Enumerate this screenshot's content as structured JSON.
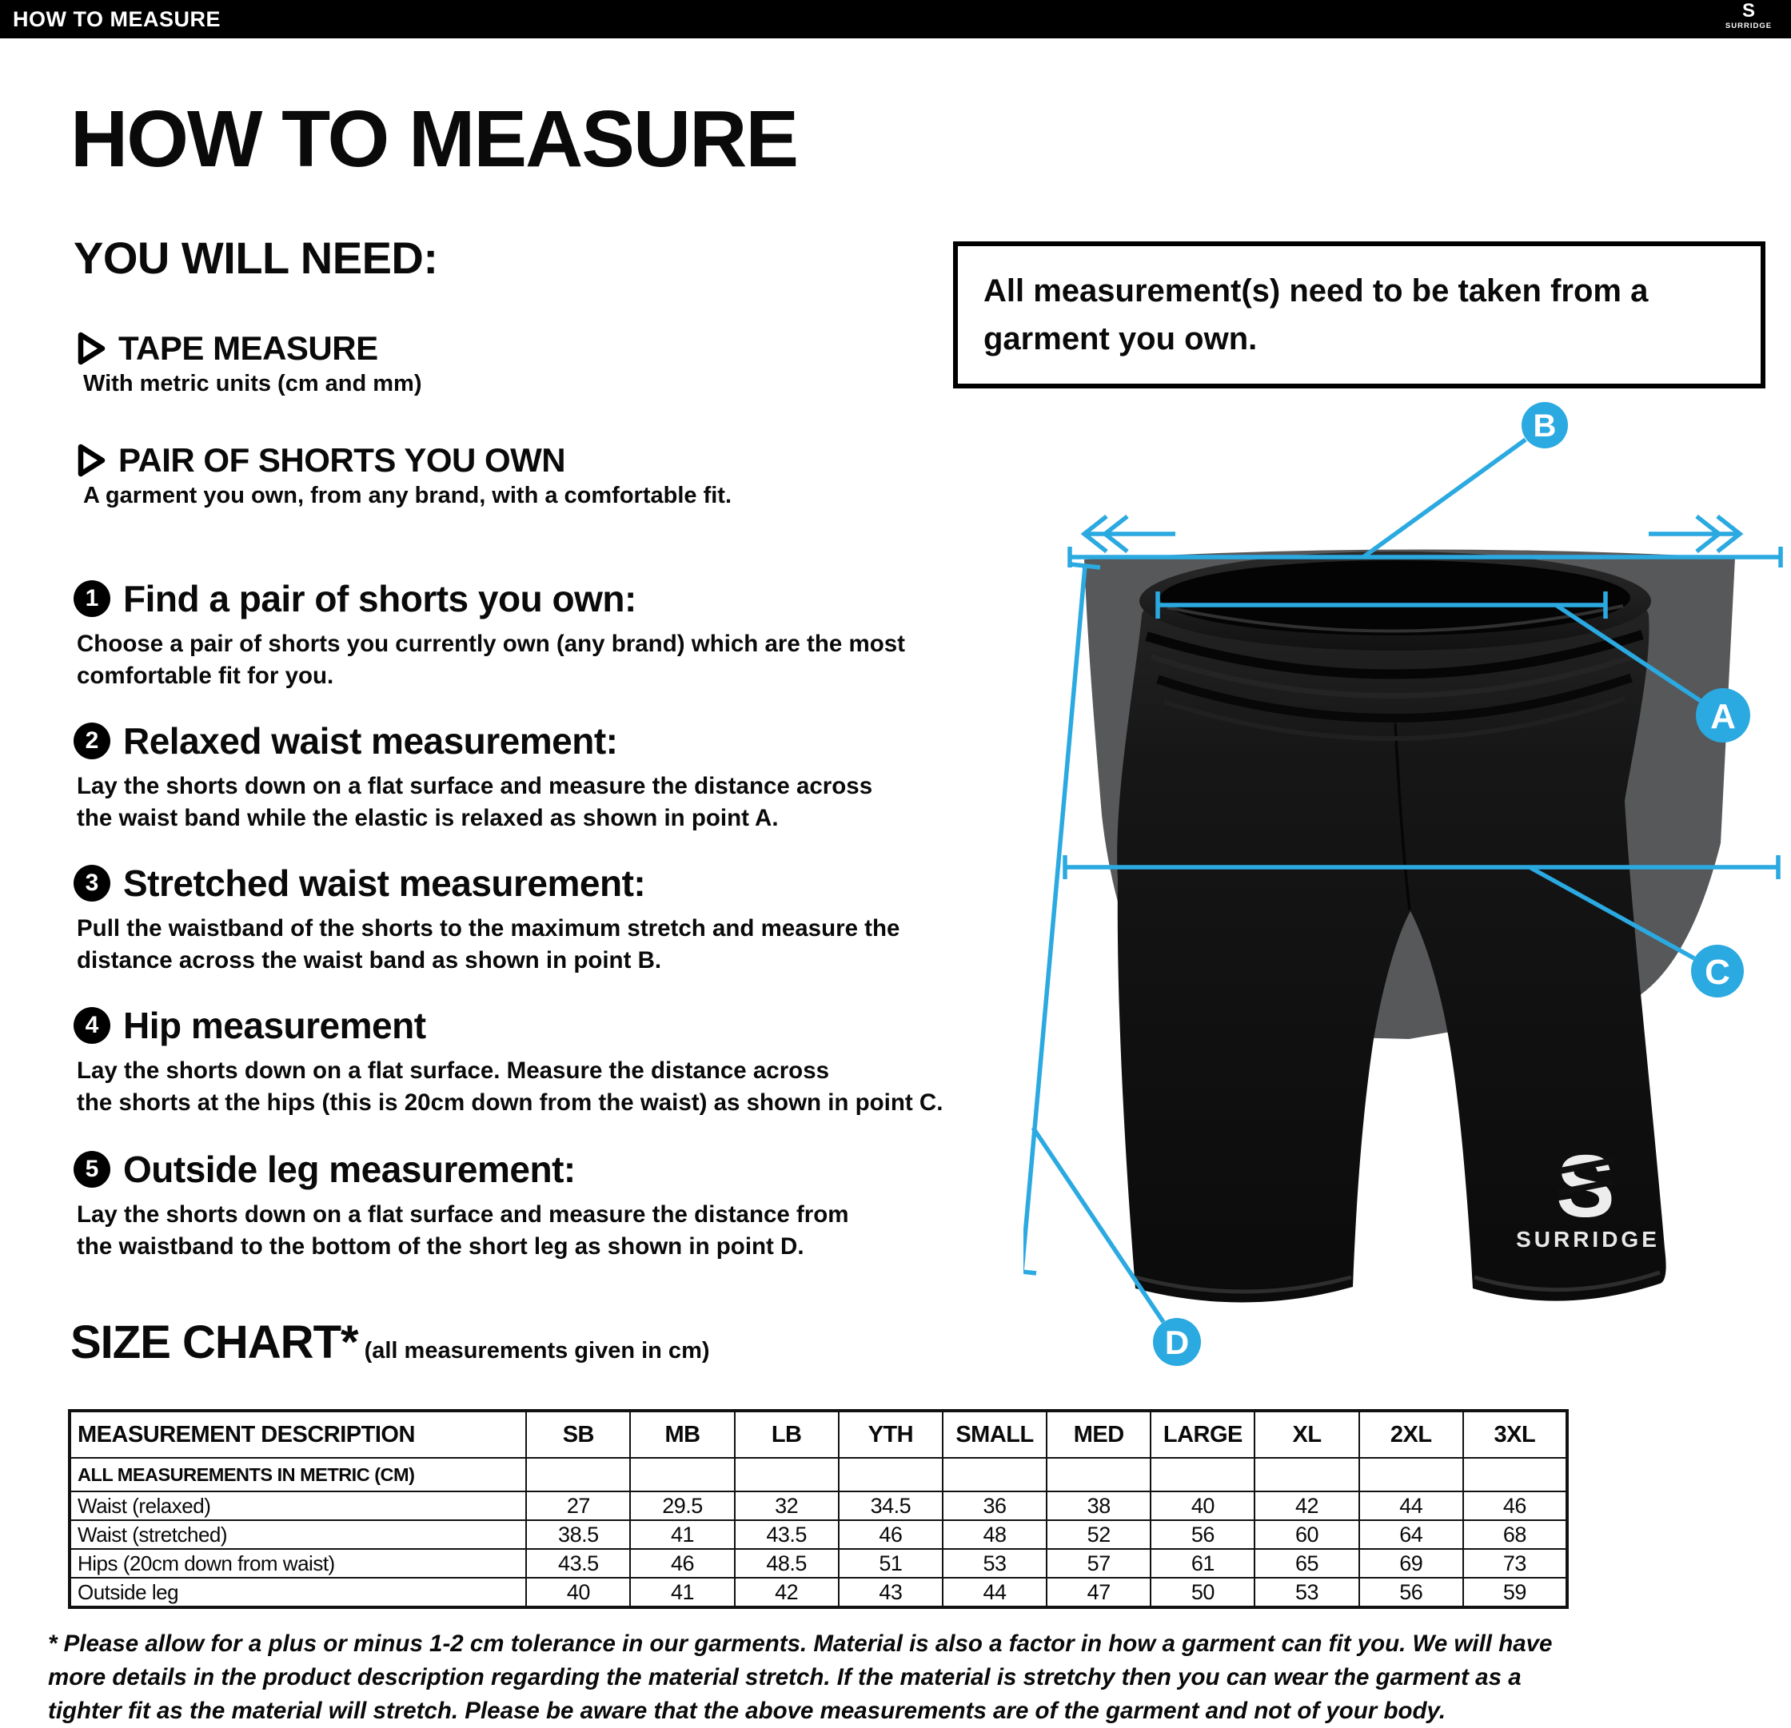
{
  "brand": {
    "name": "SURRIDGE",
    "logo_letter": "S"
  },
  "topbar": {
    "title": "HOW TO MEASURE"
  },
  "page_title": "HOW TO MEASURE",
  "you_will_need": {
    "title": "YOU WILL NEED:",
    "items": [
      {
        "label": "TAPE MEASURE",
        "desc": "With metric units (cm and mm)"
      },
      {
        "label": "PAIR OF SHORTS YOU OWN",
        "desc": "A garment you own, from any brand, with a comfortable fit."
      }
    ]
  },
  "note_box": "All measurement(s) need to be taken from a\ngarment you own.",
  "steps": [
    {
      "num": "1",
      "title": "Find a pair of shorts you own:",
      "desc": "Choose a pair of shorts you currently own (any brand) which are the most\ncomfortable fit for you."
    },
    {
      "num": "2",
      "title": "Relaxed waist measurement:",
      "desc": "Lay the shorts down on a flat surface and measure the distance across\nthe waist band while the elastic is relaxed as shown in point A."
    },
    {
      "num": "3",
      "title": "Stretched waist measurement:",
      "desc": "Pull the waistband of the shorts to the maximum stretch and measure the\ndistance across the waist band as shown in point B."
    },
    {
      "num": "4",
      "title": "Hip measurement",
      "desc": "Lay the shorts down on a flat surface. Measure the distance across\nthe shorts at the hips (this is 20cm down from the waist)  as shown in point C."
    },
    {
      "num": "5",
      "title": "Outside leg measurement:",
      "desc": "Lay the shorts down on a flat surface and measure the distance from\nthe waistband to the bottom of the short leg as shown in point D."
    }
  ],
  "diagram": {
    "accent_color": "#2BA9E1",
    "point_labels": {
      "a": "A",
      "b": "B",
      "c": "C",
      "d": "D"
    }
  },
  "size_chart": {
    "title": "SIZE CHART*",
    "subtitle": "(all measurements given in cm)",
    "columns": [
      "MEASUREMENT DESCRIPTION",
      "SB",
      "MB",
      "LB",
      "YTH",
      "SMALL",
      "MED",
      "LARGE",
      "XL",
      "2XL",
      "3XL"
    ],
    "note_row": "ALL MEASUREMENTS IN METRIC (CM)",
    "rows": [
      {
        "label": "Waist (relaxed)",
        "values": [
          "27",
          "29.5",
          "32",
          "34.5",
          "36",
          "38",
          "40",
          "42",
          "44",
          "46"
        ]
      },
      {
        "label": "Waist (stretched)",
        "values": [
          "38.5",
          "41",
          "43.5",
          "46",
          "48",
          "52",
          "56",
          "60",
          "64",
          "68"
        ]
      },
      {
        "label": "Hips (20cm down from waist)",
        "values": [
          "43.5",
          "46",
          "48.5",
          "51",
          "53",
          "57",
          "61",
          "65",
          "69",
          "73"
        ]
      },
      {
        "label": "Outside leg",
        "values": [
          "40",
          "41",
          "42",
          "43",
          "44",
          "47",
          "50",
          "53",
          "56",
          "59"
        ]
      }
    ]
  },
  "footnote": "* Please allow for a plus or minus 1-2 cm tolerance in our garments. Material is also a factor in how a garment can fit you. We will have\nmore details in the product description regarding the material stretch.  If the material is stretchy then you can wear the garment as a\ntighter fit as the material will stretch.  Please be aware that the above measurements are of the garment and not of your body."
}
